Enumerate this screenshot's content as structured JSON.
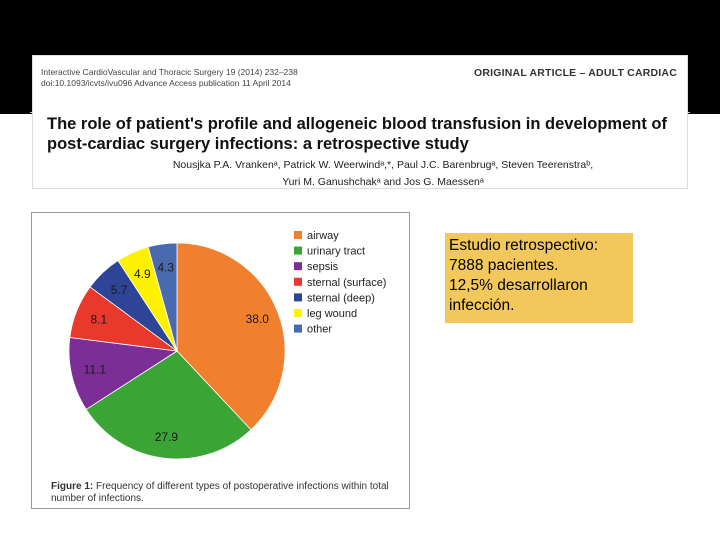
{
  "paper": {
    "journal_line1": "Interactive CardioVascular and Thoracic Surgery 19 (2014) 232–238",
    "journal_line2": "doi:10.1093/icvts/ivu096    Advance Access publication 11 April 2014",
    "article_type": "ORIGINAL ARTICLE – ADULT CARDIAC",
    "title": "The role of patient's profile and allogeneic blood transfusion in development of post-cardiac surgery infections: a retrospective study",
    "authors_line1": "Nousjka P.A. Vrankenᵃ, Patrick W. Weerwindᵃ,*, Paul J.C. Barenbrugᵃ, Steven Teerenstraᵇ,",
    "authors_line2": "Yuri M. Ganushchakᵃ and Jos G. Maessenᵃ"
  },
  "figure": {
    "caption_label": "Figure 1:",
    "caption_text": "Frequency of different types of postoperative infections within total number of infections."
  },
  "note": {
    "line1": "Estudio retrospectivo:",
    "line2": "7888 pacientes.",
    "line3": "12,5% desarrollaron",
    "line4": "infección."
  },
  "chart_data": {
    "type": "pie",
    "title": "",
    "categories": [
      "airway",
      "urinary tract",
      "sepsis",
      "sternal (surface)",
      "sternal (deep)",
      "leg wound",
      "other"
    ],
    "values": [
      38.0,
      27.9,
      11.1,
      8.1,
      5.7,
      4.9,
      4.3
    ],
    "labels": [
      "38.0",
      "27.9",
      "11.1",
      "8.1",
      "5.7",
      "4.9",
      "4.3"
    ],
    "colors": [
      "#f07f2e",
      "#3aa535",
      "#7b2f96",
      "#e8392c",
      "#2e4597",
      "#fff200",
      "#4a6ab0"
    ],
    "legend": "right"
  }
}
